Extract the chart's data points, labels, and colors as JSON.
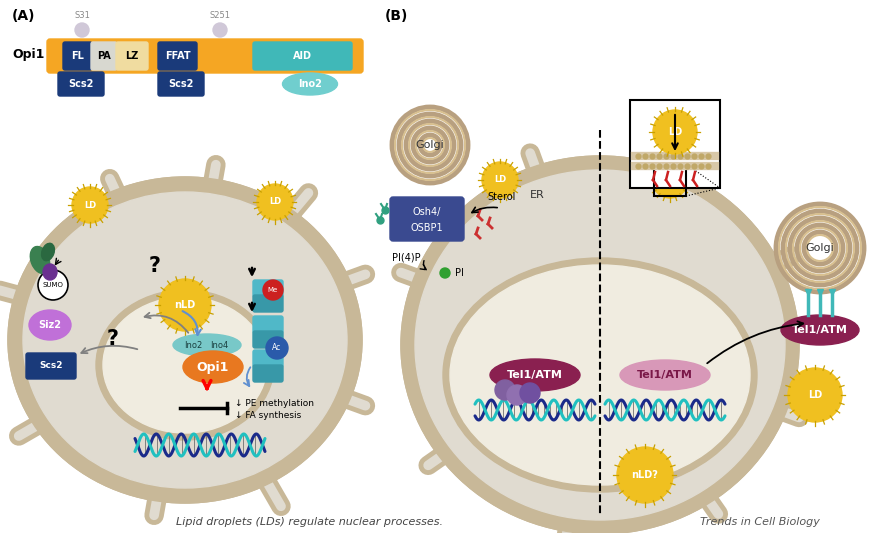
{
  "title": "Lipid droplets (LDs) regulate nuclear processes.",
  "trends_label": "Trends in Cell Biology",
  "bg_color": "#ffffff",
  "panel_A_label": "(A)",
  "panel_B_label": "(B)",
  "opi1_bar_color": "#f5a623",
  "cell_bg": "#e0dbd0",
  "nucleus_bg": "#f0ece0",
  "wall_color": "#c8b898",
  "LD_yellow": "#f0c020",
  "dark_blue": "#1a3a7a",
  "teal": "#40b8b8",
  "light_teal": "#70cece",
  "orange": "#e87820",
  "purple_light": "#c080e0",
  "purple_dark": "#6a3090",
  "dna_blue": "#1a2a8a",
  "dna_teal": "#20c0c0",
  "dark_green": "#2a7040",
  "golgi_outer": "#c8b090",
  "golgi_inner": "#e8d0a0",
  "tel1_dark": "#8a2050",
  "tel1_light": "#d090b0",
  "med_blue": "#2a5aaa"
}
